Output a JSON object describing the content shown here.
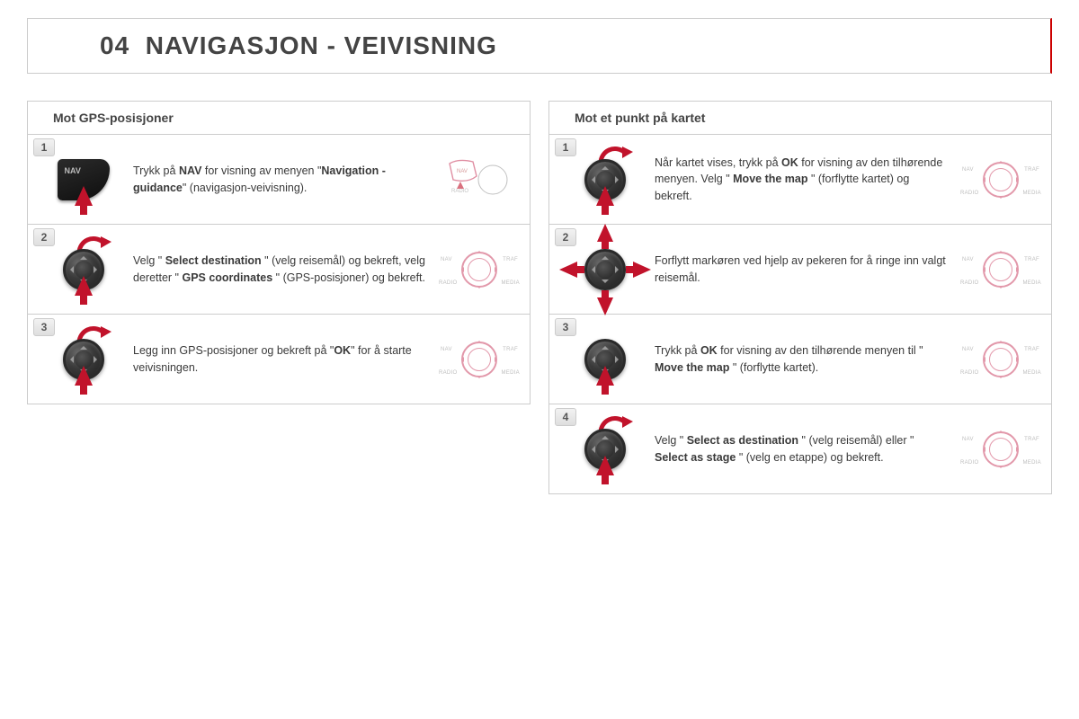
{
  "header": {
    "section_number": "04",
    "title": "NAVIGASJON - VEIVISNING"
  },
  "colors": {
    "accent_red": "#c1132b",
    "border_gray": "#cccccc",
    "text_gray": "#3a3a3a",
    "knob_dark": "#2a2a2a"
  },
  "left_column": {
    "heading": "Mot GPS-posisjoner",
    "steps": [
      {
        "num": "1",
        "icon": "nav-button",
        "html": "Trykk på <b>NAV</b> for visning av menyen \"<b>Navigation - guidance</b>\" (navigasjon-veivisning).",
        "thumb": "console"
      },
      {
        "num": "2",
        "icon": "knob-arc-up",
        "html": "Velg \" <b>Select destination</b> \" (velg reisemål) og bekreft, velg deretter \" <b>GPS coordinates</b> \" (GPS-posisjoner) og bekreft.",
        "thumb": "dial"
      },
      {
        "num": "3",
        "icon": "knob-arc-up",
        "html": "Legg inn GPS-posisjoner og bekreft på \"<b>OK</b>\" for å starte veivisningen.",
        "thumb": "dial"
      }
    ]
  },
  "right_column": {
    "heading": "Mot et punkt på kartet",
    "steps": [
      {
        "num": "1",
        "icon": "knob-arc-up",
        "html": "Når kartet vises, trykk på <b>OK</b> for visning av den tilhørende menyen. Velg \" <b>Move the map</b> \" (forflytte kartet) og bekreft.",
        "thumb": "dial"
      },
      {
        "num": "2",
        "icon": "knob-fourway",
        "html": "Forflytt markøren ved hjelp av pekeren for å ringe inn valgt reisemål.",
        "thumb": "dial"
      },
      {
        "num": "3",
        "icon": "knob-up",
        "html": "Trykk på <b>OK</b> for visning av den tilhørende menyen til \" <b>Move the map</b> \" (forflytte kartet).",
        "thumb": "dial"
      },
      {
        "num": "4",
        "icon": "knob-arc-up",
        "html": "Velg \" <b>Select as destination</b> \" (velg reisemål) eller \" <b>Select as stage</b> \" (velg en etappe) og bekreft.",
        "thumb": "dial"
      }
    ]
  },
  "thumb_labels": {
    "nav": "NAV",
    "traf": "TRAF",
    "radio": "RADIO",
    "media": "MEDIA"
  },
  "nav_button_label": "NAV"
}
